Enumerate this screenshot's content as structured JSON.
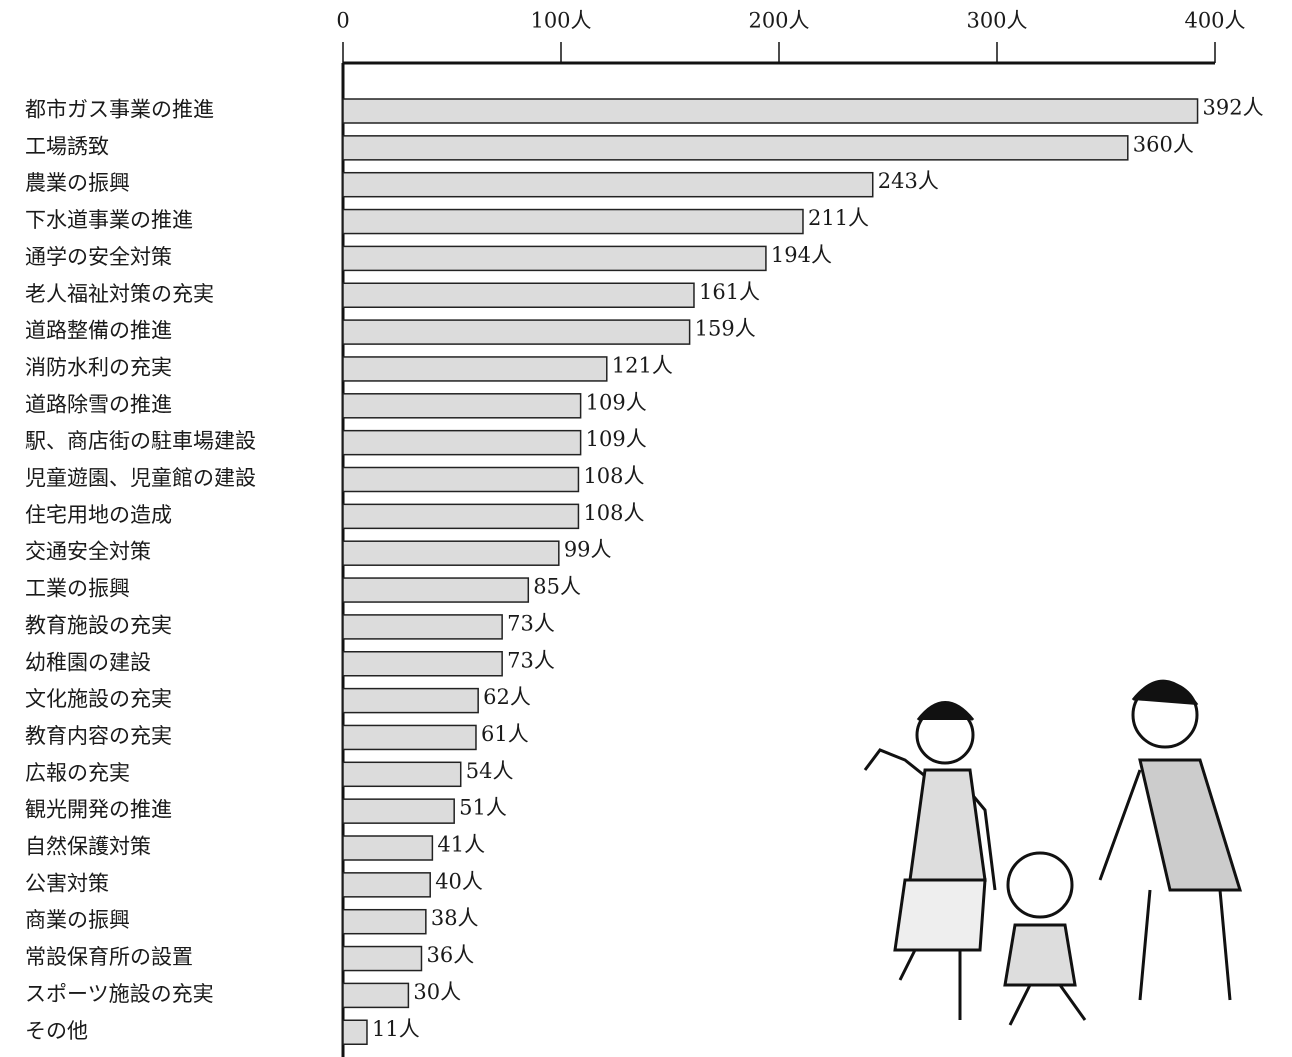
{
  "chart_data": {
    "type": "bar",
    "orientation": "horizontal",
    "categories": [
      "都市ガス事業の推進",
      "工場誘致",
      "農業の振興",
      "下水道事業の推進",
      "通学の安全対策",
      "老人福祉対策の充実",
      "道路整備の推進",
      "消防水利の充実",
      "道路除雪の推進",
      "駅、商店街の駐車場建設",
      "児童遊園、児童館の建設",
      "住宅用地の造成",
      "交通安全対策",
      "工業の振興",
      "教育施設の充実",
      "幼稚園の建設",
      "文化施設の充実",
      "教育内容の充実",
      "広報の充実",
      "観光開発の推進",
      "自然保護対策",
      "公害対策",
      "商業の振興",
      "常設保育所の設置",
      "スポーツ施設の充実",
      "その他"
    ],
    "values": [
      392,
      360,
      243,
      211,
      194,
      161,
      159,
      121,
      109,
      109,
      108,
      108,
      99,
      85,
      73,
      73,
      62,
      61,
      54,
      51,
      41,
      40,
      38,
      36,
      30,
      11
    ],
    "value_labels": [
      "392人",
      "360人",
      "243人",
      "211人",
      "194人",
      "161人",
      "159人",
      "121人",
      "109人",
      "109人",
      "108人",
      "108人",
      "99人",
      "85人",
      "73人",
      "73人",
      "62人",
      "61人",
      "54人",
      "51人",
      "41人",
      "40人",
      "38人",
      "36人",
      "30人",
      "11人"
    ],
    "color": "#dcdcdc",
    "xlim": [
      0,
      400
    ],
    "xticks": [
      0,
      {
        "value": 100,
        "label": "100人"
      },
      {
        "value": 200,
        "label": "200人"
      },
      {
        "value": 300,
        "label": "300人"
      },
      {
        "value": 400,
        "label": "400人"
      }
    ],
    "grid": false
  }
}
